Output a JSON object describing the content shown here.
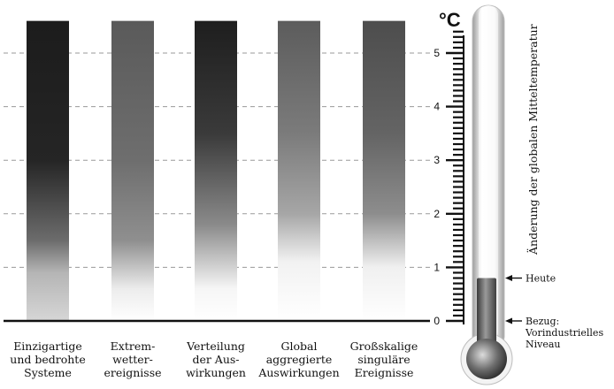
{
  "chart_data": {
    "type": "bar",
    "categories": [
      [
        "Einzigartige",
        "und bedrohte",
        "Systeme"
      ],
      [
        "Extrem-",
        "wetter-",
        "ereignisse"
      ],
      [
        "Verteilung",
        "der Aus-",
        "wirkungen"
      ],
      [
        "Global",
        "aggregierte",
        "Auswirkungen"
      ],
      [
        "Großskalige",
        "singuläre",
        "Ereignisse"
      ]
    ],
    "series": [
      {
        "gradient": [
          {
            "t": 0.0,
            "color": "#d6d6d6"
          },
          {
            "t": 0.9,
            "color": "#b5b5b5"
          },
          {
            "t": 1.5,
            "color": "#6c6c6c"
          },
          {
            "t": 3.0,
            "color": "#252525"
          },
          {
            "t": 5.6,
            "color": "#1c1c1c"
          }
        ]
      },
      {
        "gradient": [
          {
            "t": 0.0,
            "color": "#ffffff"
          },
          {
            "t": 0.6,
            "color": "#ececec"
          },
          {
            "t": 1.5,
            "color": "#8f8f8f"
          },
          {
            "t": 3.0,
            "color": "#6e6e6e"
          },
          {
            "t": 5.6,
            "color": "#5a5a5a"
          }
        ]
      },
      {
        "gradient": [
          {
            "t": 0.0,
            "color": "#ffffff"
          },
          {
            "t": 0.6,
            "color": "#f6f6f6"
          },
          {
            "t": 1.8,
            "color": "#8a8a8a"
          },
          {
            "t": 3.5,
            "color": "#3a3a3a"
          },
          {
            "t": 5.6,
            "color": "#1e1e1e"
          }
        ]
      },
      {
        "gradient": [
          {
            "t": 0.0,
            "color": "#ffffff"
          },
          {
            "t": 1.1,
            "color": "#f2f2f2"
          },
          {
            "t": 2.0,
            "color": "#a6a6a6"
          },
          {
            "t": 3.5,
            "color": "#7b7b7b"
          },
          {
            "t": 5.6,
            "color": "#5c5c5c"
          }
        ]
      },
      {
        "gradient": [
          {
            "t": 0.0,
            "color": "#ffffff"
          },
          {
            "t": 1.0,
            "color": "#f0f0f0"
          },
          {
            "t": 2.0,
            "color": "#8d8d8d"
          },
          {
            "t": 3.5,
            "color": "#646464"
          },
          {
            "t": 5.6,
            "color": "#4d4d4d"
          }
        ]
      }
    ],
    "ylim": [
      0,
      5.6
    ],
    "yticks": [
      0,
      1,
      2,
      3,
      4,
      5
    ],
    "unit": "°C",
    "ylabel": "Änderung der globalen Mitteltemperatur",
    "thermometer_value": 0.8,
    "annotations": [
      {
        "value": 0.8,
        "lines": [
          "Heute"
        ]
      },
      {
        "value": 0.0,
        "lines": [
          "Bezug:",
          "Vorindustrielles",
          "Niveau"
        ]
      }
    ],
    "grid": true
  }
}
